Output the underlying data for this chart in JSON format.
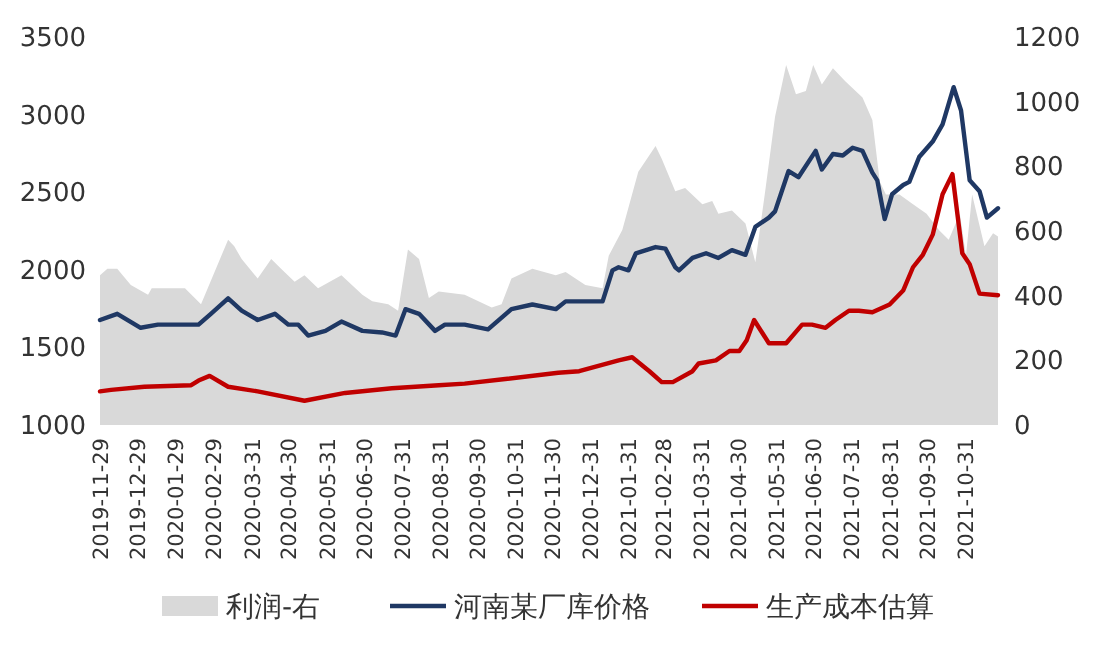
{
  "chart_data": {
    "type": "line",
    "xlim": [
      "2019-11-29",
      "2021-11-27"
    ],
    "xticks": [
      "2019-11-29",
      "2019-12-29",
      "2020-01-29",
      "2020-02-29",
      "2020-03-31",
      "2020-04-30",
      "2020-05-31",
      "2020-06-30",
      "2020-07-31",
      "2020-08-31",
      "2020-09-30",
      "2020-10-31",
      "2020-11-30",
      "2020-12-31",
      "2021-01-31",
      "2021-02-28",
      "2021-03-31",
      "2021-04-30",
      "2021-05-31",
      "2021-06-30",
      "2021-07-31",
      "2021-08-31",
      "2021-09-30",
      "2021-10-31"
    ],
    "ylim": [
      1000,
      3500
    ],
    "yticks": [
      1000,
      1500,
      2000,
      2500,
      3000,
      3500
    ],
    "y2lim": [
      0,
      1200
    ],
    "y2ticks": [
      0,
      200,
      400,
      600,
      800,
      1000,
      1200
    ],
    "legend": "bottom",
    "series": [
      {
        "name": "利润-右",
        "type": "area",
        "axis": "y2",
        "color": "#d9d9d9",
        "x": [
          "2019-11-29",
          "2019-12-05",
          "2019-12-13",
          "2019-12-24",
          "2020-01-07",
          "2020-01-10",
          "2020-02-06",
          "2020-02-19",
          "2020-03-12",
          "2020-03-17",
          "2020-03-23",
          "2020-04-05",
          "2020-04-16",
          "2020-04-24",
          "2020-05-05",
          "2020-05-13",
          "2020-05-24",
          "2020-06-12",
          "2020-06-29",
          "2020-07-07",
          "2020-07-20",
          "2020-07-28",
          "2020-08-05",
          "2020-08-14",
          "2020-08-22",
          "2020-08-30",
          "2020-09-20",
          "2020-10-12",
          "2020-10-20",
          "2020-10-28",
          "2020-11-14",
          "2020-12-03",
          "2020-12-11",
          "2020-12-27",
          "2021-01-10",
          "2021-01-15",
          "2021-01-26",
          "2021-02-08",
          "2021-02-22",
          "2021-02-27",
          "2021-03-10",
          "2021-03-18",
          "2021-04-01",
          "2021-04-09",
          "2021-04-14",
          "2021-04-25",
          "2021-05-06",
          "2021-05-14",
          "2021-05-22",
          "2021-05-30",
          "2021-06-08",
          "2021-06-16",
          "2021-06-24",
          "2021-06-30",
          "2021-07-07",
          "2021-07-16",
          "2021-07-26",
          "2021-08-09",
          "2021-08-17",
          "2021-08-23",
          "2021-08-28",
          "2021-09-08",
          "2021-09-19",
          "2021-09-30",
          "2021-10-10",
          "2021-10-18",
          "2021-10-27",
          "2021-11-01",
          "2021-11-06",
          "2021-11-16",
          "2021-11-23",
          "2021-11-27"
        ],
        "values": [
          460,
          480,
          480,
          430,
          400,
          420,
          420,
          370,
          570,
          550,
          510,
          450,
          510,
          480,
          440,
          460,
          420,
          460,
          400,
          380,
          370,
          350,
          540,
          510,
          390,
          410,
          400,
          360,
          370,
          450,
          480,
          460,
          470,
          430,
          420,
          520,
          600,
          780,
          860,
          820,
          720,
          730,
          680,
          690,
          650,
          660,
          620,
          500,
          720,
          950,
          1110,
          1020,
          1030,
          1110,
          1050,
          1100,
          1060,
          1010,
          940,
          750,
          710,
          710,
          680,
          650,
          600,
          570,
          650,
          520,
          710,
          550,
          590,
          580
        ]
      },
      {
        "name": "河南某厂库价格",
        "color": "#1f3864",
        "x": [
          "2019-11-29",
          "2019-12-13",
          "2020-01-01",
          "2020-01-15",
          "2020-02-17",
          "2020-02-27",
          "2020-03-12",
          "2020-03-23",
          "2020-04-05",
          "2020-04-19",
          "2020-04-30",
          "2020-05-08",
          "2020-05-16",
          "2020-05-30",
          "2020-06-12",
          "2020-06-29",
          "2020-07-15",
          "2020-07-26",
          "2020-08-03",
          "2020-08-14",
          "2020-08-27",
          "2020-09-04",
          "2020-09-20",
          "2020-10-09",
          "2020-10-28",
          "2020-11-14",
          "2020-12-03",
          "2020-12-11",
          "2021-01-10",
          "2021-01-18",
          "2021-01-23",
          "2021-01-31",
          "2021-02-06",
          "2021-02-22",
          "2021-03-02",
          "2021-03-10",
          "2021-03-13",
          "2021-03-24",
          "2021-04-04",
          "2021-04-14",
          "2021-04-25",
          "2021-05-06",
          "2021-05-14",
          "2021-05-25",
          "2021-05-30",
          "2021-06-10",
          "2021-06-18",
          "2021-07-02",
          "2021-07-07",
          "2021-07-16",
          "2021-07-24",
          "2021-08-01",
          "2021-08-09",
          "2021-08-17",
          "2021-08-21",
          "2021-08-27",
          "2021-09-02",
          "2021-09-11",
          "2021-09-16",
          "2021-09-24",
          "2021-10-05",
          "2021-10-13",
          "2021-10-22",
          "2021-10-28",
          "2021-11-04",
          "2021-11-12",
          "2021-11-18",
          "2021-11-27"
        ],
        "values": [
          1670,
          1710,
          1620,
          1640,
          1640,
          1710,
          1810,
          1730,
          1670,
          1710,
          1640,
          1640,
          1570,
          1600,
          1660,
          1600,
          1590,
          1570,
          1740,
          1710,
          1600,
          1640,
          1640,
          1610,
          1740,
          1770,
          1740,
          1790,
          1790,
          1990,
          2010,
          1990,
          2100,
          2140,
          2130,
          2010,
          1990,
          2070,
          2100,
          2070,
          2120,
          2090,
          2270,
          2330,
          2370,
          2630,
          2590,
          2760,
          2640,
          2740,
          2730,
          2780,
          2760,
          2620,
          2570,
          2320,
          2480,
          2540,
          2560,
          2720,
          2820,
          2930,
          3170,
          3020,
          2570,
          2500,
          2330,
          2390
        ]
      },
      {
        "name": "生产成本估算",
        "color": "#c00000",
        "x": [
          "2019-11-29",
          "2019-12-08",
          "2020-01-04",
          "2020-02-11",
          "2020-02-17",
          "2020-02-26",
          "2020-03-12",
          "2020-04-05",
          "2020-05-13",
          "2020-06-15",
          "2020-07-23",
          "2020-08-30",
          "2020-09-20",
          "2020-10-23",
          "2020-12-05",
          "2020-12-22",
          "2021-01-23",
          "2021-02-03",
          "2021-02-17",
          "2021-02-27",
          "2021-03-08",
          "2021-03-24",
          "2021-03-29",
          "2021-04-12",
          "2021-04-23",
          "2021-05-01",
          "2021-05-07",
          "2021-05-13",
          "2021-05-25",
          "2021-06-08",
          "2021-06-21",
          "2021-06-29",
          "2021-07-10",
          "2021-07-18",
          "2021-07-29",
          "2021-08-06",
          "2021-08-17",
          "2021-08-31",
          "2021-09-11",
          "2021-09-19",
          "2021-09-27",
          "2021-10-05",
          "2021-10-13",
          "2021-10-21",
          "2021-10-29",
          "2021-11-04",
          "2021-11-12",
          "2021-11-27"
        ],
        "values": [
          1210,
          1220,
          1240,
          1250,
          1280,
          1310,
          1240,
          1210,
          1150,
          1200,
          1230,
          1250,
          1260,
          1290,
          1330,
          1340,
          1410,
          1430,
          1340,
          1270,
          1270,
          1340,
          1390,
          1410,
          1470,
          1470,
          1540,
          1670,
          1520,
          1520,
          1640,
          1640,
          1620,
          1670,
          1730,
          1730,
          1720,
          1770,
          1860,
          2010,
          2090,
          2220,
          2480,
          2610,
          2100,
          2030,
          1840,
          1830
        ]
      }
    ]
  }
}
